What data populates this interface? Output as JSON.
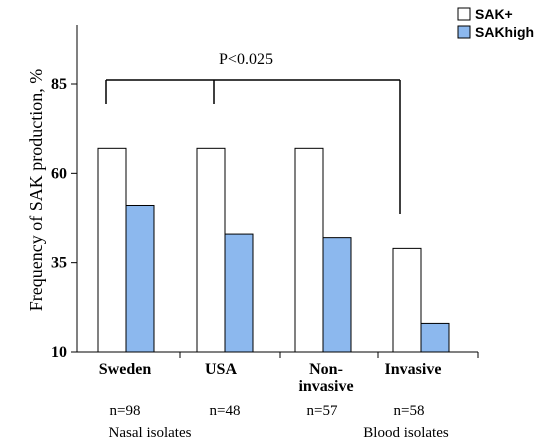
{
  "chart_data": {
    "type": "bar",
    "categories": [
      [
        "Sweden"
      ],
      [
        "USA"
      ],
      [
        "Non-",
        "invasive"
      ],
      [
        "Invasive"
      ]
    ],
    "n_labels": [
      "n=98",
      "n=48",
      "n=57",
      "n=58"
    ],
    "groups": [
      {
        "label": "Nasal isolates"
      },
      {
        "label": "Blood isolates"
      }
    ],
    "series": [
      {
        "name": "SAK+",
        "color": "#ffffff",
        "values": [
          67,
          67,
          67,
          39
        ]
      },
      {
        "name": "SAKhigh",
        "color": "#8cb8ee",
        "values": [
          51,
          43,
          42,
          18
        ]
      }
    ],
    "ylabel": "Frequency of SAK production, %",
    "yticks": [
      10,
      35,
      60,
      85
    ],
    "ylim": [
      10,
      100
    ],
    "significance": {
      "label": "P<0.025"
    },
    "legend": "top-right"
  }
}
